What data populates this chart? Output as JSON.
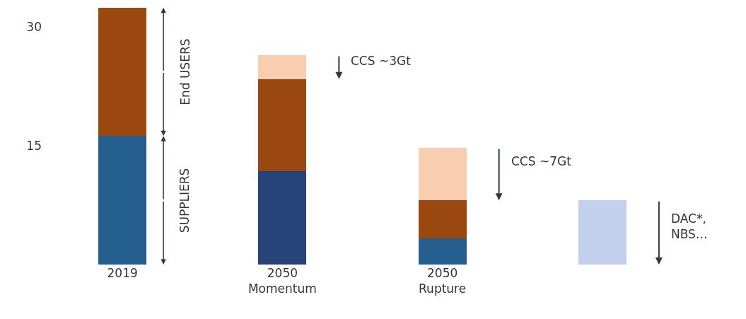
{
  "chart_data": {
    "type": "bar",
    "stacked": true,
    "categories": [
      "2019",
      "2050\nMomentum",
      "2050\nRupture",
      null
    ],
    "series": [
      {
        "name": "SUPPLIERS",
        "colors": [
          "#245f8f",
          "#26447a",
          "#245f8f",
          "#245f8f"
        ],
        "values": [
          16.2,
          11.8,
          3.3,
          null
        ]
      },
      {
        "name": "End USERS",
        "color": "#9a4710",
        "values": [
          16.2,
          11.6,
          4.8,
          null
        ]
      },
      {
        "color": "#f9cdb0",
        "values": [
          null,
          3,
          6.6,
          null
        ]
      },
      {
        "color": "#c3d0ec",
        "values": [
          null,
          null,
          null,
          8.1
        ]
      }
    ],
    "ylim": [
      0,
      33
    ],
    "yticks": [
      15,
      30
    ],
    "grid": false,
    "legend": false,
    "annotations": [
      "CCS ~3Gt",
      "CCS ~7Gt",
      "DAC*,\nNBS…"
    ]
  }
}
